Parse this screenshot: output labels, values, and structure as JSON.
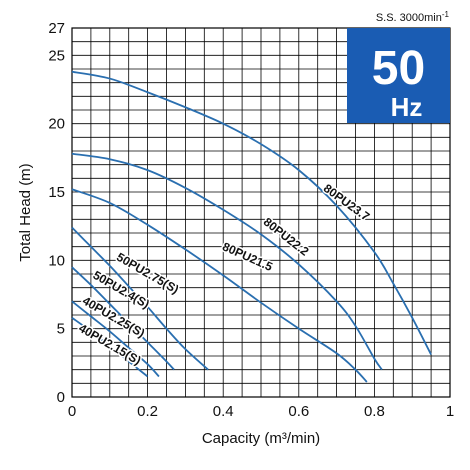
{
  "chart_data": {
    "type": "line",
    "xlabel": "Capacity (m³/min)",
    "ylabel": "Total Head (m)",
    "xlim": [
      0,
      1.0
    ],
    "ylim": [
      0,
      27
    ],
    "x_ticks": [
      0,
      0.2,
      0.4,
      0.6,
      0.8,
      1
    ],
    "x_tick_labels": [
      "0",
      "0.2",
      "0.4",
      "0.6",
      "0.8",
      "1"
    ],
    "y_ticks": [
      0,
      5,
      10,
      15,
      20,
      25,
      27
    ],
    "y_tick_labels": [
      "0",
      "5",
      "10",
      "15",
      "20",
      "25",
      "27"
    ],
    "grid": true,
    "grid_step_x": 0.05,
    "grid_step_y": 1,
    "line_color": "#2a6fb0",
    "series": [
      {
        "name": "80PU23.7",
        "x": [
          0,
          0.1,
          0.2,
          0.3,
          0.4,
          0.5,
          0.6,
          0.7,
          0.8,
          0.85,
          0.9,
          0.95
        ],
        "y": [
          23.8,
          23.3,
          22.3,
          21.2,
          20.0,
          18.5,
          16.6,
          14.0,
          10.6,
          8.3,
          5.8,
          3.1
        ]
      },
      {
        "name": "80PU22.2",
        "x": [
          0,
          0.1,
          0.2,
          0.3,
          0.4,
          0.5,
          0.6,
          0.7,
          0.75,
          0.8,
          0.82
        ],
        "y": [
          17.8,
          17.4,
          16.6,
          15.3,
          13.7,
          11.9,
          9.7,
          7.0,
          5.2,
          2.8,
          2.0
        ]
      },
      {
        "name": "80PU21.5",
        "x": [
          0,
          0.1,
          0.2,
          0.3,
          0.4,
          0.5,
          0.6,
          0.7,
          0.75,
          0.78
        ],
        "y": [
          15.2,
          14.2,
          12.6,
          10.8,
          8.9,
          6.9,
          5.0,
          3.2,
          2.0,
          1.1
        ]
      },
      {
        "name": "50PU2.75(S)",
        "x": [
          0,
          0.05,
          0.1,
          0.15,
          0.2,
          0.25,
          0.3,
          0.36
        ],
        "y": [
          12.4,
          11.0,
          9.6,
          8.1,
          6.6,
          5.0,
          3.5,
          2.0
        ]
      },
      {
        "name": "50PU2.4(S)",
        "x": [
          0,
          0.05,
          0.1,
          0.15,
          0.2,
          0.25,
          0.27
        ],
        "y": [
          9.5,
          8.2,
          6.8,
          5.4,
          4.0,
          2.6,
          2.0
        ]
      },
      {
        "name": "40PU2.25(S)",
        "x": [
          0,
          0.05,
          0.1,
          0.15,
          0.2,
          0.23
        ],
        "y": [
          7.0,
          5.9,
          4.8,
          3.6,
          2.4,
          1.5
        ]
      },
      {
        "name": "40PU2.15(S)",
        "x": [
          0,
          0.05,
          0.1,
          0.15,
          0.2
        ],
        "y": [
          5.8,
          4.8,
          3.7,
          2.6,
          1.5
        ]
      }
    ],
    "curve_labels": [
      {
        "text": "80PU23.7",
        "series": "80PU23.7",
        "at_x": 0.72,
        "at_y": 14.0,
        "angle": 36
      },
      {
        "text": "80PU22.2",
        "series": "80PU22.2",
        "at_x": 0.56,
        "at_y": 11.5,
        "angle": 38
      },
      {
        "text": "80PU21.5",
        "series": "80PU21.5",
        "at_x": 0.46,
        "at_y": 10.0,
        "angle": 24
      },
      {
        "text": "50PU2.75(S)",
        "series": "50PU2.75(S)",
        "at_x": 0.195,
        "at_y": 8.8,
        "angle": 30
      },
      {
        "text": "50PU2.4(S)",
        "series": "50PU2.4(S)",
        "at_x": 0.125,
        "at_y": 7.6,
        "angle": 30
      },
      {
        "text": "40PU2.25(S)",
        "series": "40PU2.25(S)",
        "at_x": 0.105,
        "at_y": 5.6,
        "angle": 30
      },
      {
        "text": "40PU2.15(S)",
        "series": "40PU2.15(S)",
        "at_x": 0.095,
        "at_y": 3.6,
        "angle": 30
      }
    ],
    "badge": {
      "big": "50",
      "small": "Hz",
      "bg": "#1a5cb3"
    },
    "speed_note": "S.S. 3000min",
    "speed_note_exponent": "-1"
  }
}
